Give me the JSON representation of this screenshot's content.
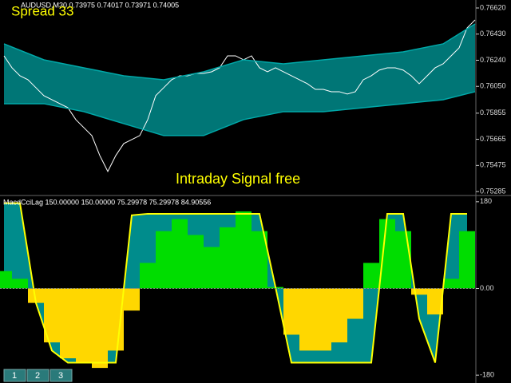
{
  "chart_data": [
    {
      "type": "line",
      "title": "AUDUSD,M30  0.73975 0.74017 0.73971 0.74005",
      "annotations": [
        "Spread 33",
        "Intraday Signal free"
      ],
      "ylim": [
        0.75268,
        0.76678
      ],
      "yticks": [
        {
          "value": 0.7662,
          "label": "0.76620"
        },
        {
          "value": 0.7643,
          "label": "0.76430"
        },
        {
          "value": 0.7624,
          "label": "0.76240"
        },
        {
          "value": 0.7605,
          "label": "0.76050"
        },
        {
          "value": 0.75855,
          "label": "0.75855"
        },
        {
          "value": 0.75665,
          "label": "0.75665"
        },
        {
          "value": 0.75475,
          "label": "0.75475"
        },
        {
          "value": 0.75285,
          "label": "0.75285"
        }
      ],
      "band_fill": "#008b8b",
      "series": [
        {
          "color": "#ffffff",
          "values": [
            0.76272,
            0.76185,
            0.76127,
            0.76098,
            0.7604,
            0.75982,
            0.75953,
            0.75924,
            0.75895,
            0.75808,
            0.7575,
            0.75692,
            0.75547,
            0.75431,
            0.75547,
            0.75634,
            0.75663,
            0.75692,
            0.75808,
            0.75982,
            0.7604,
            0.76098,
            0.76127,
            0.76127,
            0.76144,
            0.76144,
            0.76156,
            0.76185,
            0.76272,
            0.76272,
            0.76243,
            0.76272,
            0.76185,
            0.76156,
            0.76185,
            0.76156,
            0.76127,
            0.76098,
            0.76069,
            0.76028,
            0.76028,
            0.76011,
            0.76011,
            0.75994,
            0.76011,
            0.76098,
            0.76127,
            0.76168,
            0.76185,
            0.76185,
            0.76168,
            0.76127,
            0.76069,
            0.76127,
            0.76185,
            0.76214,
            0.76272,
            0.7633,
            0.76475,
            0.76533
          ]
        },
        {
          "color": "#00a8a8",
          "x": [
            0,
            5,
            10,
            15,
            20,
            25,
            30,
            35,
            40,
            45,
            50,
            55,
            59
          ],
          "values": [
            0.76359,
            0.76243,
            0.76185,
            0.76127,
            0.76098,
            0.76156,
            0.76243,
            0.76214,
            0.76243,
            0.76272,
            0.76301,
            0.76359,
            0.76504
          ]
        },
        {
          "color": "#00a8a8",
          "x": [
            0,
            5,
            10,
            15,
            20,
            25,
            30,
            35,
            40,
            45,
            50,
            55,
            59
          ],
          "values": [
            0.75924,
            0.75924,
            0.75866,
            0.75779,
            0.75692,
            0.75692,
            0.75808,
            0.75866,
            0.75866,
            0.75895,
            0.75924,
            0.75953,
            0.76011
          ]
        }
      ]
    },
    {
      "type": "area",
      "title": "MacdCciLag 150.00000 150.00000 75.29978 75.29978 84.90556",
      "ylim": [
        -193,
        193
      ],
      "yticks": [
        180,
        {
          "value": 0,
          "label": "0.00"
        },
        -180
      ],
      "positive_color": "#00dd00",
      "negative_color": "#ffd700",
      "series": [
        {
          "color": "#ffd700",
          "values": [
            36,
            20,
            -30,
            -112,
            -145,
            -154,
            -165,
            -129,
            -46,
            53,
            119,
            144,
            111,
            86,
            127,
            160,
            119,
            3,
            -96,
            -129,
            -129,
            -112,
            -63,
            53,
            144,
            119,
            -13,
            -54,
            20,
            119
          ]
        },
        {
          "color": "#ffff00",
          "fill": "#008c8c",
          "values": [
            177,
            177,
            -30,
            -129,
            -154,
            -154,
            -154,
            -154,
            152,
            155,
            155,
            155,
            155,
            155,
            155,
            155,
            155,
            3,
            -154,
            -154,
            -154,
            -154,
            -154,
            -154,
            155,
            155,
            -63,
            -154,
            155,
            155
          ]
        }
      ]
    }
  ],
  "tabs": [
    "1",
    "2",
    "3"
  ]
}
